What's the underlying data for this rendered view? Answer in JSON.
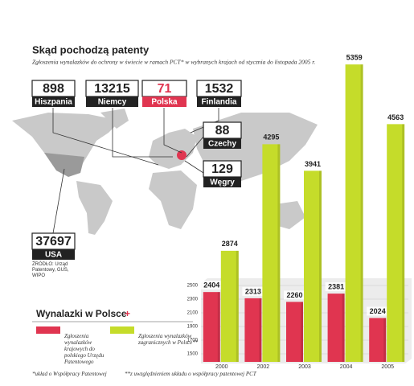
{
  "chart_data": {
    "type": "bar",
    "title": "Skąd pochodzą patenty",
    "subtitle": "Zgłoszenia wynalazków do ochrony w świecie w ramach PCT* w wybranych krajach od stycznia do listopada 2005 r.",
    "legend_title": "Wynalazki w Polsce",
    "categories": [
      "2000",
      "2002",
      "2003",
      "2004",
      "2005"
    ],
    "series": [
      {
        "name": "Zgłoszenia wynalazków krajowych do polskiego Urzędu Patentowego",
        "color": "#e03550",
        "values": [
          2404,
          2313,
          2260,
          2381,
          2024
        ]
      },
      {
        "name": "Zgłoszenia wynalazków zagranicznych w Polsce**",
        "color": "#c5dc2a",
        "values": [
          2874,
          4295,
          3941,
          5359,
          4563
        ],
        "axis": "y2"
      }
    ],
    "ylim": [
      1500,
      2500
    ],
    "yticks": [
      1500,
      1700,
      1900,
      2100,
      2300,
      2500
    ],
    "y2lim": [
      1500,
      5500
    ],
    "grid": true
  },
  "map": {
    "callouts": [
      {
        "value": 898,
        "label": "Hiszpania",
        "color": "#222222"
      },
      {
        "value": 13215,
        "label": "Niemcy",
        "color": "#222222"
      },
      {
        "value": 71,
        "label": "Polska",
        "color": "#e03550"
      },
      {
        "value": 1532,
        "label": "Finlandia",
        "color": "#222222"
      },
      {
        "value": 88,
        "label": "Czechy",
        "color": "#222222"
      },
      {
        "value": 129,
        "label": "Węgry",
        "color": "#222222"
      },
      {
        "value": 37697,
        "label": "USA",
        "color": "#222222"
      }
    ],
    "source": "ŹRÓDŁO: Urząd Patentowy, GUS, WIPO"
  },
  "footnotes": [
    "*układ o Współpracy Patentowej",
    "**z uwzględnieniem układu o współpracy patentowej PCT"
  ]
}
